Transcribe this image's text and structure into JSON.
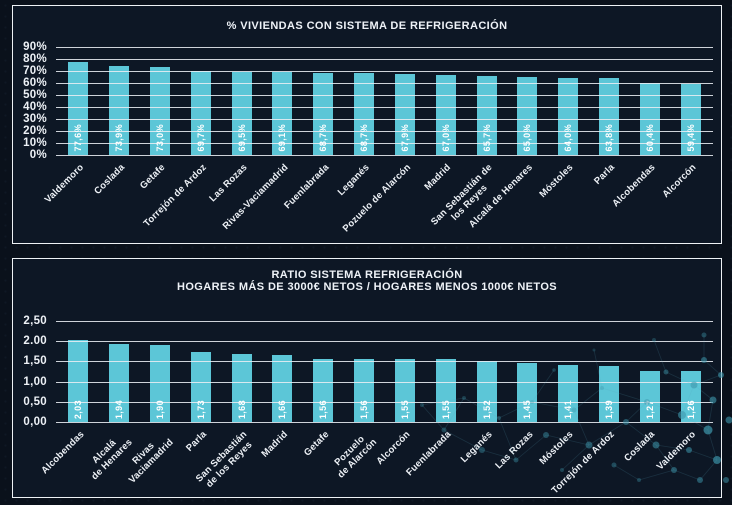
{
  "colors": {
    "page_background": "#0a111b",
    "panel_background": "#0d1725",
    "panel_border": "#eef2f5",
    "bar": "#5cc6d7",
    "gridline": "#e9eef4",
    "text": "#eef2f7"
  },
  "chart_data": [
    {
      "type": "bar",
      "title": "% VIVIENDAS CON SISTEMA DE REFRIGERACIÓN",
      "xlabel": "",
      "ylabel": "",
      "ylim": [
        0,
        90
      ],
      "y_max": 90,
      "grid": true,
      "legend": "none",
      "bar_color": "#5cc6d7",
      "y_ticks": [
        "90%",
        "80%",
        "70%",
        "60%",
        "50%",
        "40%",
        "30%",
        "20%",
        "10%",
        "0%"
      ],
      "categories": [
        "Valdemoro",
        "Coslada",
        "Getafe",
        "Torrejón de Ardoz",
        "Las Rozas",
        "Rivas-Vaciamadrid",
        "Fuenlabrada",
        "Leganés",
        "Pozuelo de Alarcón",
        "Madrid",
        "San Sebastián de\nlos Reyes",
        "Alcalá de Henares",
        "Móstoles",
        "Parla",
        "Alcobendas",
        "Alcorcón"
      ],
      "values": [
        77.6,
        73.9,
        73.0,
        69.7,
        69.5,
        69.1,
        68.7,
        68.7,
        67.9,
        67.0,
        65.7,
        65.0,
        64.0,
        63.8,
        60.4,
        59.4
      ],
      "value_labels": [
        "77,6%",
        "73,9%",
        "73,0%",
        "69,7%",
        "69,5%",
        "69,1%",
        "68,7%",
        "68,7%",
        "67,9%",
        "67,0%",
        "65,7%",
        "65,0%",
        "64,0%",
        "63,8%",
        "60,4%",
        "59,4%"
      ]
    },
    {
      "type": "bar",
      "title": "RATIO SISTEMA REFRIGERACIÓN",
      "subtitle": "HOGARES MÁS DE 3000€ NETOS / HOGARES MENOS 1000€ NETOS",
      "xlabel": "",
      "ylabel": "",
      "ylim": [
        0,
        2.5
      ],
      "y_max": 2.5,
      "grid": true,
      "legend": "none",
      "bar_color": "#5cc6d7",
      "y_ticks": [
        "2,50",
        "2.00",
        "1,50",
        "1,00",
        "0,50",
        "0,00"
      ],
      "categories": [
        "Alcobendas",
        "Alcalá\nde Henares",
        "Rivas\nVaciamadrid",
        "Parla",
        "San Sebastián\nde los Reyes",
        "Madrid",
        "Getafe",
        "Pozuelo\nde Alarcón",
        "Alcorcón",
        "Fuenlabrada",
        "Leganés",
        "Las Rozas",
        "Móstoles",
        "Torrejón de Ardoz",
        "Coslada",
        "Valdemoro"
      ],
      "values": [
        2.03,
        1.94,
        1.9,
        1.73,
        1.68,
        1.66,
        1.56,
        1.56,
        1.55,
        1.55,
        1.52,
        1.45,
        1.41,
        1.39,
        1.27,
        1.26
      ],
      "value_labels": [
        "2,03",
        "1,94",
        "1,90",
        "1,73",
        "1,68",
        "1,66",
        "1,56",
        "1,56",
        "1,55",
        "1,55",
        "1,52",
        "1,45",
        "1,41",
        "1,39",
        "1,27",
        "1,26"
      ]
    }
  ]
}
